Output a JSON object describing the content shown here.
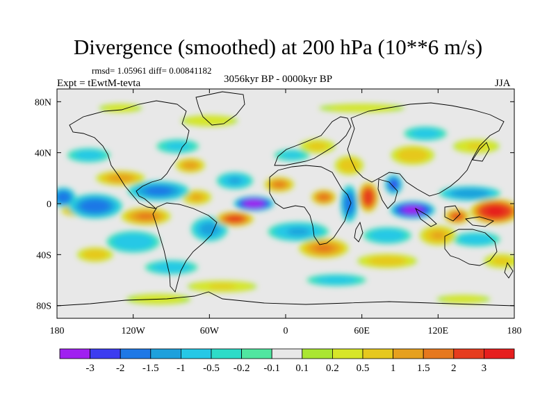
{
  "title": "Divergence (smoothed) at 200 hPa (10**6 m/s)",
  "stats": "rmsd= 1.05961 diff= 0.00841182",
  "experiment": "Expt = tEwtM-tevta",
  "period": "3056kyr BP - 0000kyr BP",
  "season": "JJA",
  "map": {
    "lon_range": [
      -180,
      180
    ],
    "lat_range": [
      -90,
      90
    ],
    "lon_ticks": [
      {
        "value": -180,
        "label": "180"
      },
      {
        "value": -120,
        "label": "120W"
      },
      {
        "value": -60,
        "label": "60W"
      },
      {
        "value": 0,
        "label": "0"
      },
      {
        "value": 60,
        "label": "60E"
      },
      {
        "value": 120,
        "label": "120E"
      },
      {
        "value": 180,
        "label": "180"
      }
    ],
    "lat_ticks": [
      {
        "value": 80,
        "label": "80N"
      },
      {
        "value": 40,
        "label": "40N"
      },
      {
        "value": 0,
        "label": "0"
      },
      {
        "value": -40,
        "label": "40S"
      },
      {
        "value": -80,
        "label": "80S"
      }
    ],
    "background": "#e8e8e8",
    "anomalies": [
      {
        "lon": -25,
        "lat": 0,
        "rlon": 16,
        "rlat": 6,
        "v": -3.5
      },
      {
        "lon": -150,
        "lat": -2,
        "rlon": 22,
        "rlat": 10,
        "v": -1.8
      },
      {
        "lon": -175,
        "lat": 5,
        "rlon": 10,
        "rlat": 8,
        "v": -1.9
      },
      {
        "lon": -100,
        "lat": 10,
        "rlon": 25,
        "rlat": 8,
        "v": -1.6
      },
      {
        "lon": -60,
        "lat": -20,
        "rlon": 15,
        "rlat": 10,
        "v": -1.2
      },
      {
        "lon": -40,
        "lat": 18,
        "rlon": 15,
        "rlat": 7,
        "v": -1.0
      },
      {
        "lon": 50,
        "lat": 0,
        "rlon": 7,
        "rlat": 15,
        "v": -1.8
      },
      {
        "lon": 100,
        "lat": -5,
        "rlon": 18,
        "rlat": 7,
        "v": -3.2
      },
      {
        "lon": 85,
        "lat": 15,
        "rlon": 7,
        "rlat": 8,
        "v": -2.0
      },
      {
        "lon": 145,
        "lat": 8,
        "rlon": 25,
        "rlat": 6,
        "v": -1.4
      },
      {
        "lon": 10,
        "lat": -22,
        "rlon": 25,
        "rlat": 8,
        "v": -1.0
      },
      {
        "lon": -120,
        "lat": -30,
        "rlon": 22,
        "rlat": 9,
        "v": -0.9
      },
      {
        "lon": 80,
        "lat": -25,
        "rlon": 20,
        "rlat": 7,
        "v": -0.8
      },
      {
        "lon": 150,
        "lat": -28,
        "rlon": 20,
        "rlat": 6,
        "v": -0.8
      },
      {
        "lon": -155,
        "lat": 38,
        "rlon": 18,
        "rlat": 6,
        "v": -0.7
      },
      {
        "lon": -85,
        "lat": 45,
        "rlon": 18,
        "rlat": 6,
        "v": -0.6
      },
      {
        "lon": -90,
        "lat": -50,
        "rlon": 22,
        "rlat": 6,
        "v": -0.8
      },
      {
        "lon": 40,
        "lat": -60,
        "rlon": 25,
        "rlat": 5,
        "v": -0.7
      },
      {
        "lon": 110,
        "lat": 55,
        "rlon": 18,
        "rlat": 6,
        "v": -0.7
      },
      {
        "lon": 5,
        "lat": 38,
        "rlon": 15,
        "rlat": 5,
        "v": -0.6
      },
      {
        "lon": 165,
        "lat": -6,
        "rlon": 20,
        "rlat": 10,
        "v": 3.0
      },
      {
        "lon": 135,
        "lat": -10,
        "rlon": 10,
        "rlat": 6,
        "v": 2.0
      },
      {
        "lon": 65,
        "lat": 5,
        "rlon": 8,
        "rlat": 12,
        "v": 2.5
      },
      {
        "lon": 30,
        "lat": 5,
        "rlon": 10,
        "rlat": 6,
        "v": 1.8
      },
      {
        "lon": -40,
        "lat": -12,
        "rlon": 15,
        "rlat": 6,
        "v": 2.2
      },
      {
        "lon": -110,
        "lat": -10,
        "rlon": 20,
        "rlat": 7,
        "v": 1.5
      },
      {
        "lon": -165,
        "lat": -5,
        "rlon": 12,
        "rlat": 5,
        "v": 1.3
      },
      {
        "lon": -70,
        "lat": 5,
        "rlon": 12,
        "rlat": 6,
        "v": 1.0
      },
      {
        "lon": -130,
        "lat": 20,
        "rlon": 20,
        "rlat": 6,
        "v": 1.2
      },
      {
        "lon": -5,
        "lat": 15,
        "rlon": 12,
        "rlat": 6,
        "v": 1.5
      },
      {
        "lon": -75,
        "lat": 30,
        "rlon": 12,
        "rlat": 6,
        "v": 1.2
      },
      {
        "lon": 30,
        "lat": -35,
        "rlon": 20,
        "rlat": 8,
        "v": 1.5
      },
      {
        "lon": 120,
        "lat": -25,
        "rlon": 15,
        "rlat": 8,
        "v": 1.0
      },
      {
        "lon": -150,
        "lat": -40,
        "rlon": 15,
        "rlat": 6,
        "v": 0.8
      },
      {
        "lon": 50,
        "lat": 30,
        "rlon": 12,
        "rlat": 8,
        "v": 0.8
      },
      {
        "lon": 25,
        "lat": 45,
        "rlon": 15,
        "rlat": 6,
        "v": 0.6
      },
      {
        "lon": 100,
        "lat": 38,
        "rlon": 18,
        "rlat": 8,
        "v": 0.8
      },
      {
        "lon": 150,
        "lat": 45,
        "rlon": 20,
        "rlat": 6,
        "v": 0.5
      },
      {
        "lon": -60,
        "lat": 65,
        "rlon": 25,
        "rlat": 5,
        "v": 0.4
      },
      {
        "lon": 60,
        "lat": 75,
        "rlon": 40,
        "rlat": 4,
        "v": 0.3
      },
      {
        "lon": -130,
        "lat": 75,
        "rlon": 20,
        "rlat": 4,
        "v": 0.3
      },
      {
        "lon": -50,
        "lat": -65,
        "rlon": 30,
        "rlat": 5,
        "v": 0.5
      },
      {
        "lon": 80,
        "lat": -45,
        "rlon": 25,
        "rlat": 6,
        "v": 0.7
      },
      {
        "lon": 170,
        "lat": -45,
        "rlon": 15,
        "rlat": 6,
        "v": 0.6
      },
      {
        "lon": -100,
        "lat": -75,
        "rlon": 30,
        "rlat": 5,
        "v": 0.3
      },
      {
        "lon": 140,
        "lat": -75,
        "rlon": 25,
        "rlat": 4,
        "v": 0.3
      }
    ]
  },
  "colorbar": {
    "labels": [
      "-3",
      "-2",
      "-1.5",
      "-1",
      "-0.5",
      "-0.2",
      "-0.1",
      "0.1",
      "0.2",
      "0.5",
      "1",
      "1.5",
      "2",
      "3"
    ],
    "thresholds": [
      -3,
      -2,
      -1.5,
      -1,
      -0.5,
      -0.2,
      -0.1,
      0.1,
      0.2,
      0.5,
      1,
      1.5,
      2,
      3
    ],
    "colors": [
      "#a020f0",
      "#3c3cf0",
      "#1e78e6",
      "#1ea0dc",
      "#26c8e6",
      "#2ddcc8",
      "#50e6a0",
      "#e8e8e8",
      "#aae632",
      "#d7e628",
      "#e6c81e",
      "#e6a01e",
      "#e6781e",
      "#e63c1e",
      "#e61e1e"
    ]
  }
}
